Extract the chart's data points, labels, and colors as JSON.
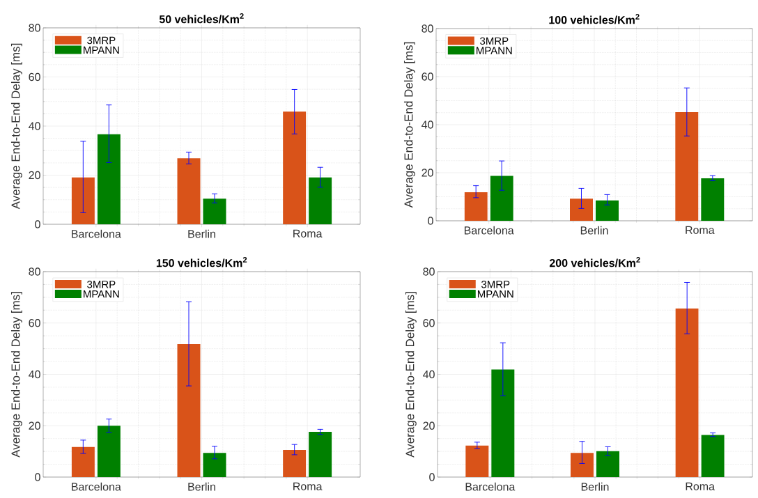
{
  "chart_data": [
    {
      "type": "bar",
      "title": "50 vehicles/Km$^{2}$",
      "ylabel": "Average End-to-End Delay [ms]",
      "categories": [
        "Barcelona",
        "Berlin",
        "Roma"
      ],
      "ylim": [
        0,
        80
      ],
      "yticks": [
        0,
        20,
        40,
        60,
        80
      ],
      "grid": true,
      "legend": "top left",
      "series": [
        {
          "name": "3MRP",
          "color": "#d95319",
          "values": [
            19.1,
            26.9,
            45.9
          ],
          "errors": [
            [
              4.7,
              33.8
            ],
            [
              24.6,
              29.4
            ],
            [
              36.8,
              54.9
            ]
          ]
        },
        {
          "name": "MPANN",
          "color": "#008000",
          "values": [
            36.7,
            10.4,
            19.1
          ],
          "errors": [
            [
              25.1,
              48.6
            ],
            [
              8.7,
              12.4
            ],
            [
              15.1,
              23.2
            ]
          ]
        }
      ]
    },
    {
      "type": "bar",
      "title": "100 vehicles/Km$^{2}$",
      "ylabel": "Average End-to-End Delay [ms]",
      "categories": [
        "Barcelona",
        "Berlin",
        "Roma"
      ],
      "ylim": [
        0,
        80
      ],
      "yticks": [
        0,
        20,
        40,
        60,
        80
      ],
      "grid": true,
      "legend": "top left",
      "series": [
        {
          "name": "3MRP",
          "color": "#d95319",
          "values": [
            11.9,
            9.2,
            45.2
          ],
          "errors": [
            [
              9.6,
              14.6
            ],
            [
              5.1,
              13.5
            ],
            [
              35.3,
              55.3
            ]
          ]
        },
        {
          "name": "MPANN",
          "color": "#008000",
          "values": [
            18.7,
            8.5,
            17.7
          ],
          "errors": [
            [
              12.7,
              24.9
            ],
            [
              6.6,
              10.9
            ],
            [
              16.7,
              18.8
            ]
          ]
        }
      ]
    },
    {
      "type": "bar",
      "title": "150 vehicles/Km$^{2}$",
      "ylabel": "Average End-to-End Delay [ms]",
      "categories": [
        "Barcelona",
        "Berlin",
        "Roma"
      ],
      "ylim": [
        0,
        80
      ],
      "yticks": [
        0,
        20,
        40,
        60,
        80
      ],
      "grid": true,
      "legend": "top left",
      "series": [
        {
          "name": "3MRP",
          "color": "#d95319",
          "values": [
            11.7,
            51.8,
            10.6
          ],
          "errors": [
            [
              9.2,
              14.4
            ],
            [
              35.5,
              68.3
            ],
            [
              8.7,
              12.7
            ]
          ]
        },
        {
          "name": "MPANN",
          "color": "#008000",
          "values": [
            20.0,
            9.4,
            17.6
          ],
          "errors": [
            [
              17.4,
              22.6
            ],
            [
              7.1,
              12.0
            ],
            [
              16.6,
              18.6
            ]
          ]
        }
      ]
    },
    {
      "type": "bar",
      "title": "200 vehicles/Km$^{2}$",
      "ylabel": "Average End-to-End Delay [ms]",
      "categories": [
        "Barcelona",
        "Berlin",
        "Roma"
      ],
      "ylim": [
        0,
        80
      ],
      "yticks": [
        0,
        20,
        40,
        60,
        80
      ],
      "grid": true,
      "legend": "top left",
      "series": [
        {
          "name": "3MRP",
          "color": "#d95319",
          "values": [
            12.3,
            9.4,
            65.7
          ],
          "errors": [
            [
              11.1,
              13.6
            ],
            [
              5.3,
              13.9
            ],
            [
              55.8,
              75.8
            ]
          ]
        },
        {
          "name": "MPANN",
          "color": "#008000",
          "values": [
            41.9,
            10.1,
            16.4
          ],
          "errors": [
            [
              31.7,
              52.3
            ],
            [
              8.4,
              11.8
            ],
            [
              15.8,
              17.2
            ]
          ]
        }
      ]
    }
  ]
}
